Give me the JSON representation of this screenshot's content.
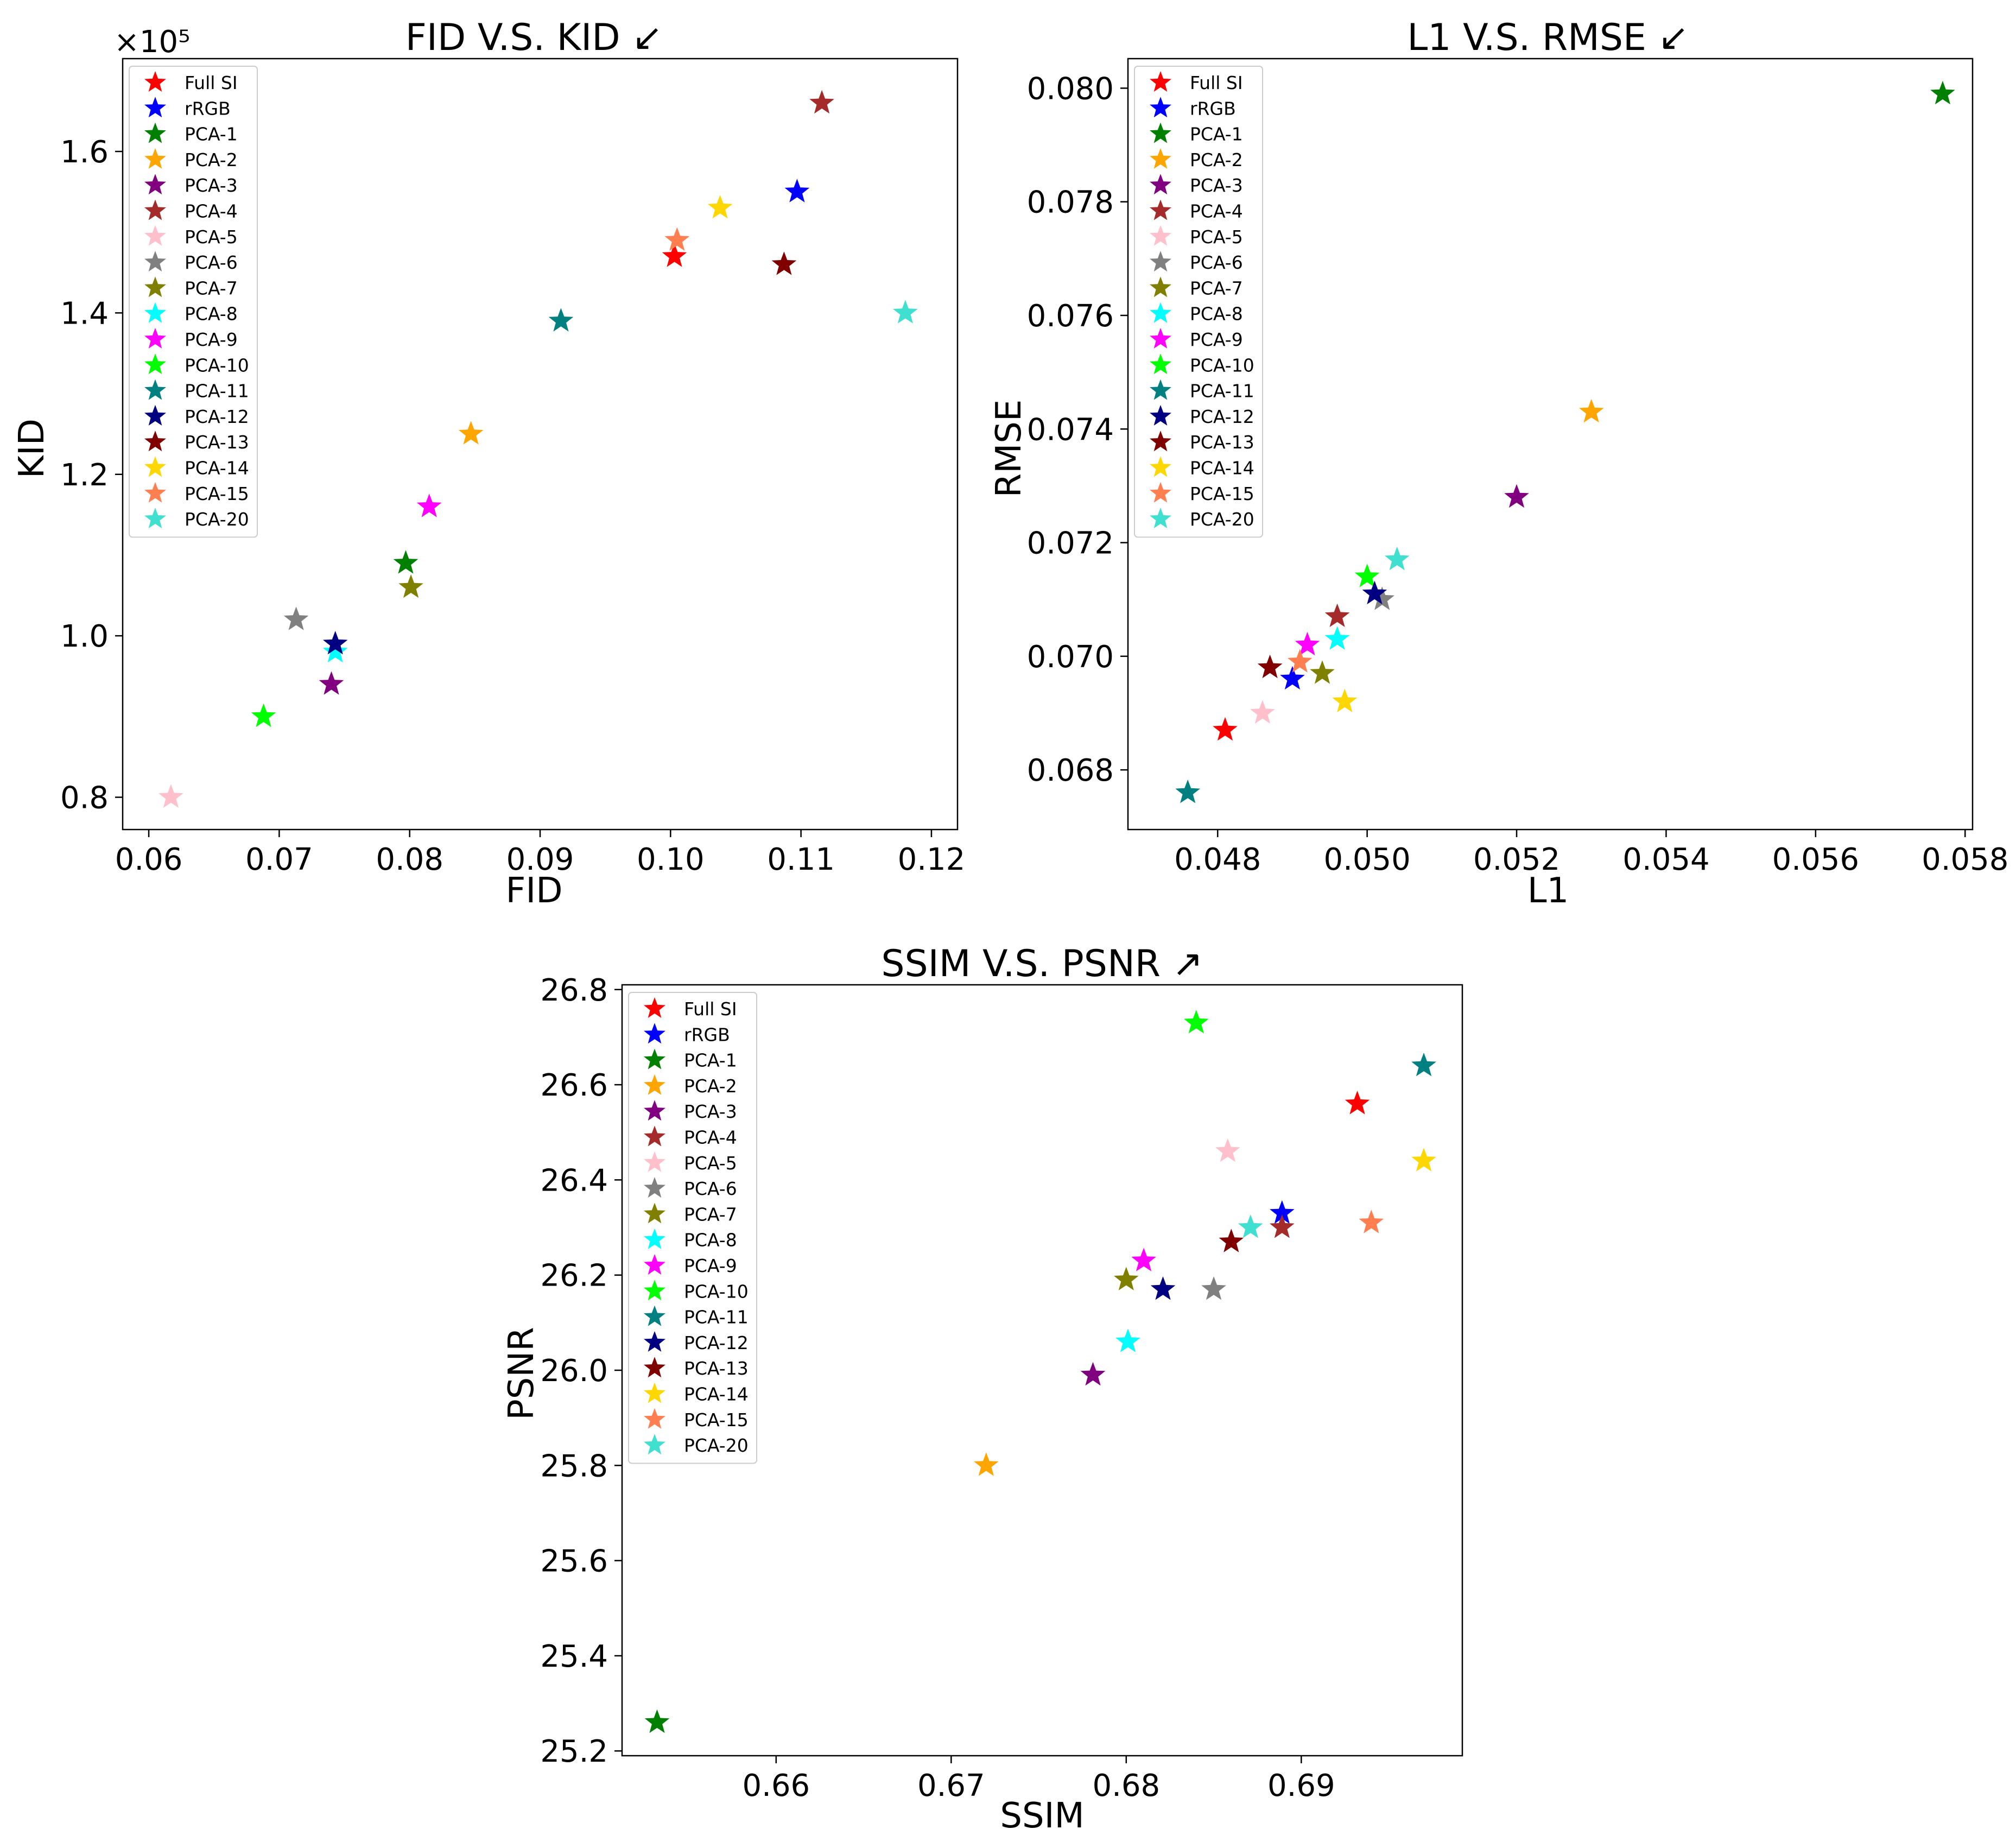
{
  "legend_entries": [
    {
      "label": "Full SI",
      "color": "#ff0000"
    },
    {
      "label": "rRGB",
      "color": "#0000ff"
    },
    {
      "label": "PCA-1",
      "color": "#008000"
    },
    {
      "label": "PCA-2",
      "color": "#ffa500"
    },
    {
      "label": "PCA-3",
      "color": "#800080"
    },
    {
      "label": "PCA-4",
      "color": "#a52a2a"
    },
    {
      "label": "PCA-5",
      "color": "#ffc0cb"
    },
    {
      "label": "PCA-6",
      "color": "#808080"
    },
    {
      "label": "PCA-7",
      "color": "#808000"
    },
    {
      "label": "PCA-8",
      "color": "#00ffff"
    },
    {
      "label": "PCA-9",
      "color": "#ff00ff"
    },
    {
      "label": "PCA-10",
      "color": "#00ff00"
    },
    {
      "label": "PCA-11",
      "color": "#008080"
    },
    {
      "label": "PCA-12",
      "color": "#000080"
    },
    {
      "label": "PCA-13",
      "color": "#800000"
    },
    {
      "label": "PCA-14",
      "color": "#ffd700"
    },
    {
      "label": "PCA-15",
      "color": "#ff7f50"
    },
    {
      "label": "PCA-20",
      "color": "#40e0d0"
    }
  ],
  "chart_data": [
    {
      "type": "scatter",
      "marker": "star",
      "title": "FID V.S. KID ↙",
      "xlabel": "FID",
      "ylabel": "KID",
      "y_offset_label": "×10⁵",
      "xlim": [
        0.058,
        0.122
      ],
      "ylim": [
        0.76,
        1.715
      ],
      "xticks": [
        0.06,
        0.07,
        0.08,
        0.09,
        0.1,
        0.11,
        0.12
      ],
      "xtick_labels": [
        "0.06",
        "0.07",
        "0.08",
        "0.09",
        "0.10",
        "0.11",
        "0.12"
      ],
      "yticks": [
        0.8,
        1.0,
        1.2,
        1.4,
        1.6
      ],
      "ytick_labels": [
        "0.8",
        "1.0",
        "1.2",
        "1.4",
        "1.6"
      ],
      "legend_position": "top-left",
      "points": [
        {
          "label": "Full SI",
          "x": 0.1003,
          "y": 1.47
        },
        {
          "label": "rRGB",
          "x": 0.1097,
          "y": 1.55
        },
        {
          "label": "PCA-1",
          "x": 0.0797,
          "y": 1.09
        },
        {
          "label": "PCA-2",
          "x": 0.0847,
          "y": 1.25
        },
        {
          "label": "PCA-3",
          "x": 0.074,
          "y": 0.94
        },
        {
          "label": "PCA-4",
          "x": 0.1116,
          "y": 1.66
        },
        {
          "label": "PCA-5",
          "x": 0.0617,
          "y": 0.8
        },
        {
          "label": "PCA-6",
          "x": 0.0713,
          "y": 1.02
        },
        {
          "label": "PCA-7",
          "x": 0.0801,
          "y": 1.06
        },
        {
          "label": "PCA-8",
          "x": 0.0743,
          "y": 0.98
        },
        {
          "label": "PCA-9",
          "x": 0.0815,
          "y": 1.16
        },
        {
          "label": "PCA-10",
          "x": 0.0688,
          "y": 0.9
        },
        {
          "label": "PCA-11",
          "x": 0.0916,
          "y": 1.39
        },
        {
          "label": "PCA-12",
          "x": 0.0743,
          "y": 0.99
        },
        {
          "label": "PCA-13",
          "x": 0.1087,
          "y": 1.46
        },
        {
          "label": "PCA-14",
          "x": 0.1038,
          "y": 1.53
        },
        {
          "label": "PCA-15",
          "x": 0.1005,
          "y": 1.49
        },
        {
          "label": "PCA-20",
          "x": 0.118,
          "y": 1.4
        }
      ]
    },
    {
      "type": "scatter",
      "marker": "star",
      "title": "L1 V.S. RMSE ↙",
      "xlabel": "L1",
      "ylabel": "RMSE",
      "xlim": [
        0.0468,
        0.0581
      ],
      "ylim": [
        0.06695,
        0.08052
      ],
      "xticks": [
        0.048,
        0.05,
        0.052,
        0.054,
        0.056,
        0.058
      ],
      "xtick_labels": [
        "0.048",
        "0.050",
        "0.052",
        "0.054",
        "0.056",
        "0.058"
      ],
      "yticks": [
        0.068,
        0.07,
        0.072,
        0.074,
        0.076,
        0.078,
        0.08
      ],
      "ytick_labels": [
        "0.068",
        "0.070",
        "0.072",
        "0.074",
        "0.076",
        "0.078",
        "0.080"
      ],
      "legend_position": "top-left",
      "points": [
        {
          "label": "Full SI",
          "x": 0.0481,
          "y": 0.0687
        },
        {
          "label": "rRGB",
          "x": 0.049,
          "y": 0.0696
        },
        {
          "label": "PCA-1",
          "x": 0.0577,
          "y": 0.0799
        },
        {
          "label": "PCA-2",
          "x": 0.053,
          "y": 0.0743
        },
        {
          "label": "PCA-3",
          "x": 0.052,
          "y": 0.0728
        },
        {
          "label": "PCA-4",
          "x": 0.0496,
          "y": 0.0707
        },
        {
          "label": "PCA-5",
          "x": 0.0486,
          "y": 0.069
        },
        {
          "label": "PCA-6",
          "x": 0.0502,
          "y": 0.071
        },
        {
          "label": "PCA-7",
          "x": 0.0494,
          "y": 0.0697
        },
        {
          "label": "PCA-8",
          "x": 0.0496,
          "y": 0.0703
        },
        {
          "label": "PCA-9",
          "x": 0.0492,
          "y": 0.0702
        },
        {
          "label": "PCA-10",
          "x": 0.05,
          "y": 0.0714
        },
        {
          "label": "PCA-11",
          "x": 0.0476,
          "y": 0.0676
        },
        {
          "label": "PCA-12",
          "x": 0.0501,
          "y": 0.0711
        },
        {
          "label": "PCA-13",
          "x": 0.0487,
          "y": 0.0698
        },
        {
          "label": "PCA-14",
          "x": 0.0497,
          "y": 0.0692
        },
        {
          "label": "PCA-15",
          "x": 0.0491,
          "y": 0.0699
        },
        {
          "label": "PCA-20",
          "x": 0.0504,
          "y": 0.0717
        }
      ]
    },
    {
      "type": "scatter",
      "marker": "star",
      "title": "SSIM V.S. PSNR ↗",
      "xlabel": "SSIM",
      "ylabel": "PSNR",
      "xlim": [
        0.6512,
        0.6992
      ],
      "ylim": [
        25.19,
        26.81
      ],
      "xticks": [
        0.66,
        0.67,
        0.68,
        0.69
      ],
      "xtick_labels": [
        "0.66",
        "0.67",
        "0.68",
        "0.69"
      ],
      "yticks": [
        25.2,
        25.4,
        25.6,
        25.8,
        26.0,
        26.2,
        26.4,
        26.6,
        26.8
      ],
      "ytick_labels": [
        "25.2",
        "25.4",
        "25.6",
        "25.8",
        "26.0",
        "26.2",
        "26.4",
        "26.6",
        "26.8"
      ],
      "legend_position": "top-left",
      "points": [
        {
          "label": "Full SI",
          "x": 0.6932,
          "y": 26.56
        },
        {
          "label": "rRGB",
          "x": 0.6889,
          "y": 26.33
        },
        {
          "label": "PCA-1",
          "x": 0.6532,
          "y": 25.26
        },
        {
          "label": "PCA-2",
          "x": 0.672,
          "y": 25.8
        },
        {
          "label": "PCA-3",
          "x": 0.6781,
          "y": 25.99
        },
        {
          "label": "PCA-4",
          "x": 0.6889,
          "y": 26.3
        },
        {
          "label": "PCA-5",
          "x": 0.6858,
          "y": 26.46
        },
        {
          "label": "PCA-6",
          "x": 0.685,
          "y": 26.17
        },
        {
          "label": "PCA-7",
          "x": 0.68,
          "y": 26.19
        },
        {
          "label": "PCA-8",
          "x": 0.6801,
          "y": 26.06
        },
        {
          "label": "PCA-9",
          "x": 0.681,
          "y": 26.23
        },
        {
          "label": "PCA-10",
          "x": 0.684,
          "y": 26.73
        },
        {
          "label": "PCA-11",
          "x": 0.697,
          "y": 26.64
        },
        {
          "label": "PCA-12",
          "x": 0.6821,
          "y": 26.17
        },
        {
          "label": "PCA-13",
          "x": 0.686,
          "y": 26.27
        },
        {
          "label": "PCA-14",
          "x": 0.697,
          "y": 26.44
        },
        {
          "label": "PCA-15",
          "x": 0.694,
          "y": 26.31
        },
        {
          "label": "PCA-20",
          "x": 0.6871,
          "y": 26.3
        }
      ]
    }
  ]
}
